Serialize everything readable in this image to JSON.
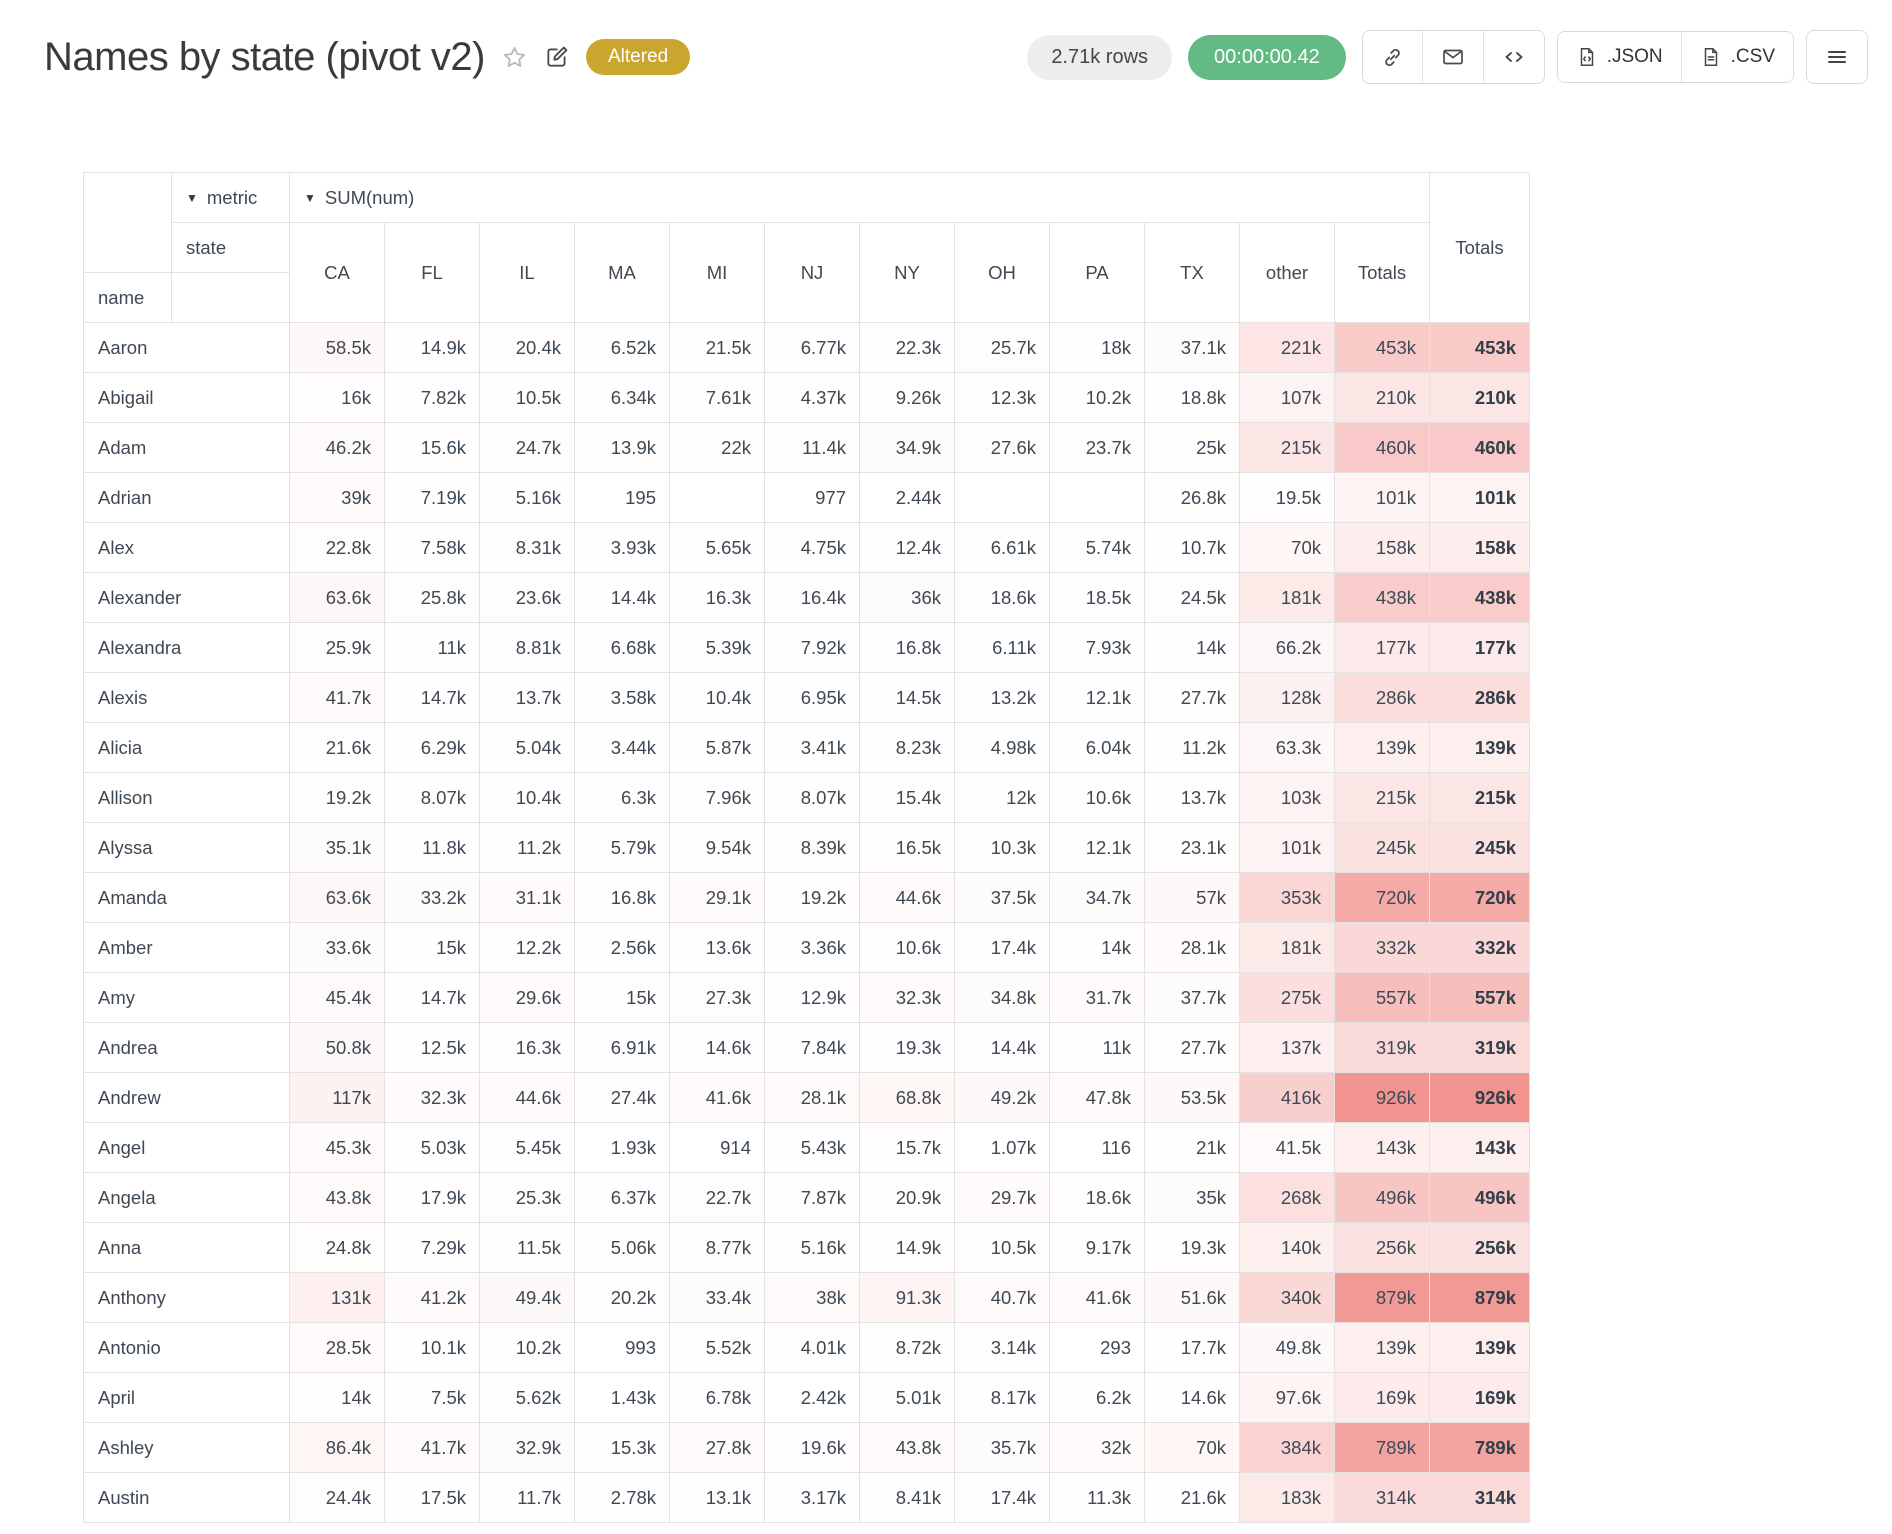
{
  "header": {
    "title": "Names by state (pivot v2)",
    "altered_label": "Altered",
    "row_count": "2.71k rows",
    "duration": "00:00:00.42",
    "export_json_label": ".JSON",
    "export_csv_label": ".CSV"
  },
  "colors": {
    "heatmap_base": "#eb6964",
    "altered_badge_bg": "#cba62f",
    "duration_badge_bg": "#64ba85",
    "row_count_badge_bg": "#ededed"
  },
  "table": {
    "filter_icon": "▼",
    "metric_label": "metric",
    "sum_label": "SUM(num)",
    "state_label": "state",
    "name_label": "name",
    "totals_col_label": "Totals",
    "grand_totals_label": "Totals",
    "columns": [
      "CA",
      "FL",
      "IL",
      "MA",
      "MI",
      "NJ",
      "NY",
      "OH",
      "PA",
      "TX",
      "other"
    ],
    "rows": [
      {
        "name": "Aaron",
        "values": [
          "58.5k",
          "14.9k",
          "20.4k",
          "6.52k",
          "21.5k",
          "6.77k",
          "22.3k",
          "25.7k",
          "18k",
          "37.1k",
          "221k"
        ],
        "total": "453k"
      },
      {
        "name": "Abigail",
        "values": [
          "16k",
          "7.82k",
          "10.5k",
          "6.34k",
          "7.61k",
          "4.37k",
          "9.26k",
          "12.3k",
          "10.2k",
          "18.8k",
          "107k"
        ],
        "total": "210k"
      },
      {
        "name": "Adam",
        "values": [
          "46.2k",
          "15.6k",
          "24.7k",
          "13.9k",
          "22k",
          "11.4k",
          "34.9k",
          "27.6k",
          "23.7k",
          "25k",
          "215k"
        ],
        "total": "460k"
      },
      {
        "name": "Adrian",
        "values": [
          "39k",
          "7.19k",
          "5.16k",
          "195",
          "",
          "977",
          "2.44k",
          "",
          "",
          "26.8k",
          "19.5k"
        ],
        "total": "101k"
      },
      {
        "name": "Alex",
        "values": [
          "22.8k",
          "7.58k",
          "8.31k",
          "3.93k",
          "5.65k",
          "4.75k",
          "12.4k",
          "6.61k",
          "5.74k",
          "10.7k",
          "70k"
        ],
        "total": "158k"
      },
      {
        "name": "Alexander",
        "values": [
          "63.6k",
          "25.8k",
          "23.6k",
          "14.4k",
          "16.3k",
          "16.4k",
          "36k",
          "18.6k",
          "18.5k",
          "24.5k",
          "181k"
        ],
        "total": "438k"
      },
      {
        "name": "Alexandra",
        "values": [
          "25.9k",
          "11k",
          "8.81k",
          "6.68k",
          "5.39k",
          "7.92k",
          "16.8k",
          "6.11k",
          "7.93k",
          "14k",
          "66.2k"
        ],
        "total": "177k"
      },
      {
        "name": "Alexis",
        "values": [
          "41.7k",
          "14.7k",
          "13.7k",
          "3.58k",
          "10.4k",
          "6.95k",
          "14.5k",
          "13.2k",
          "12.1k",
          "27.7k",
          "128k"
        ],
        "total": "286k"
      },
      {
        "name": "Alicia",
        "values": [
          "21.6k",
          "6.29k",
          "5.04k",
          "3.44k",
          "5.87k",
          "3.41k",
          "8.23k",
          "4.98k",
          "6.04k",
          "11.2k",
          "63.3k"
        ],
        "total": "139k"
      },
      {
        "name": "Allison",
        "values": [
          "19.2k",
          "8.07k",
          "10.4k",
          "6.3k",
          "7.96k",
          "8.07k",
          "15.4k",
          "12k",
          "10.6k",
          "13.7k",
          "103k"
        ],
        "total": "215k"
      },
      {
        "name": "Alyssa",
        "values": [
          "35.1k",
          "11.8k",
          "11.2k",
          "5.79k",
          "9.54k",
          "8.39k",
          "16.5k",
          "10.3k",
          "12.1k",
          "23.1k",
          "101k"
        ],
        "total": "245k"
      },
      {
        "name": "Amanda",
        "values": [
          "63.6k",
          "33.2k",
          "31.1k",
          "16.8k",
          "29.1k",
          "19.2k",
          "44.6k",
          "37.5k",
          "34.7k",
          "57k",
          "353k"
        ],
        "total": "720k"
      },
      {
        "name": "Amber",
        "values": [
          "33.6k",
          "15k",
          "12.2k",
          "2.56k",
          "13.6k",
          "3.36k",
          "10.6k",
          "17.4k",
          "14k",
          "28.1k",
          "181k"
        ],
        "total": "332k"
      },
      {
        "name": "Amy",
        "values": [
          "45.4k",
          "14.7k",
          "29.6k",
          "15k",
          "27.3k",
          "12.9k",
          "32.3k",
          "34.8k",
          "31.7k",
          "37.7k",
          "275k"
        ],
        "total": "557k"
      },
      {
        "name": "Andrea",
        "values": [
          "50.8k",
          "12.5k",
          "16.3k",
          "6.91k",
          "14.6k",
          "7.84k",
          "19.3k",
          "14.4k",
          "11k",
          "27.7k",
          "137k"
        ],
        "total": "319k"
      },
      {
        "name": "Andrew",
        "values": [
          "117k",
          "32.3k",
          "44.6k",
          "27.4k",
          "41.6k",
          "28.1k",
          "68.8k",
          "49.2k",
          "47.8k",
          "53.5k",
          "416k"
        ],
        "total": "926k"
      },
      {
        "name": "Angel",
        "values": [
          "45.3k",
          "5.03k",
          "5.45k",
          "1.93k",
          "914",
          "5.43k",
          "15.7k",
          "1.07k",
          "116",
          "21k",
          "41.5k"
        ],
        "total": "143k"
      },
      {
        "name": "Angela",
        "values": [
          "43.8k",
          "17.9k",
          "25.3k",
          "6.37k",
          "22.7k",
          "7.87k",
          "20.9k",
          "29.7k",
          "18.6k",
          "35k",
          "268k"
        ],
        "total": "496k"
      },
      {
        "name": "Anna",
        "values": [
          "24.8k",
          "7.29k",
          "11.5k",
          "5.06k",
          "8.77k",
          "5.16k",
          "14.9k",
          "10.5k",
          "9.17k",
          "19.3k",
          "140k"
        ],
        "total": "256k"
      },
      {
        "name": "Anthony",
        "values": [
          "131k",
          "41.2k",
          "49.4k",
          "20.2k",
          "33.4k",
          "38k",
          "91.3k",
          "40.7k",
          "41.6k",
          "51.6k",
          "340k"
        ],
        "total": "879k"
      },
      {
        "name": "Antonio",
        "values": [
          "28.5k",
          "10.1k",
          "10.2k",
          "993",
          "5.52k",
          "4.01k",
          "8.72k",
          "3.14k",
          "293",
          "17.7k",
          "49.8k"
        ],
        "total": "139k"
      },
      {
        "name": "April",
        "values": [
          "14k",
          "7.5k",
          "5.62k",
          "1.43k",
          "6.78k",
          "2.42k",
          "5.01k",
          "8.17k",
          "6.2k",
          "14.6k",
          "97.6k"
        ],
        "total": "169k"
      },
      {
        "name": "Ashley",
        "values": [
          "86.4k",
          "41.7k",
          "32.9k",
          "15.3k",
          "27.8k",
          "19.6k",
          "43.8k",
          "35.7k",
          "32k",
          "70k",
          "384k"
        ],
        "total": "789k"
      },
      {
        "name": "Austin",
        "values": [
          "24.4k",
          "17.5k",
          "11.7k",
          "2.78k",
          "13.1k",
          "3.17k",
          "8.41k",
          "17.4k",
          "11.3k",
          "21.6k",
          "183k"
        ],
        "total": "314k"
      }
    ]
  }
}
